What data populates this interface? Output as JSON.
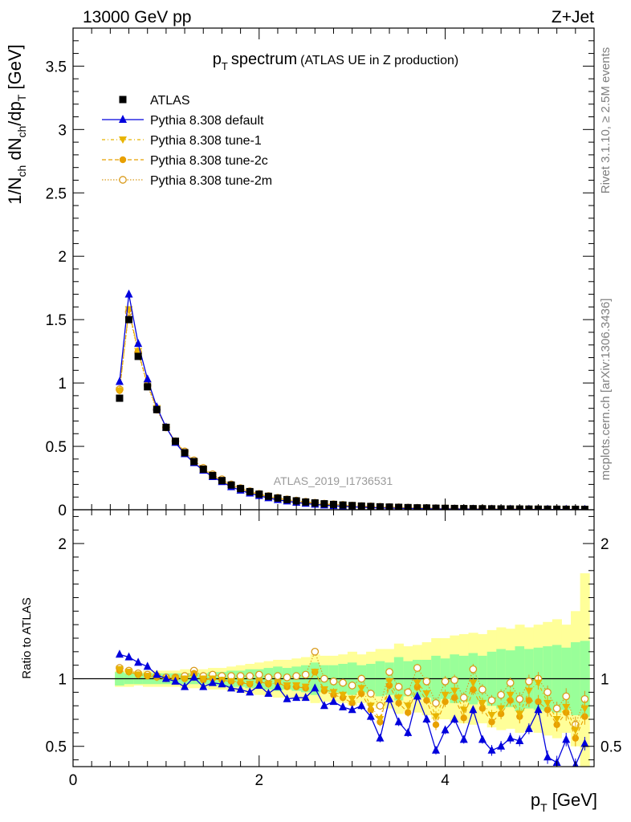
{
  "header": {
    "energy_label": "13000 GeV pp",
    "process_label": "Z+Jet"
  },
  "side_labels": {
    "rivet": "Rivet 3.1.10, ≥ 2.5M events",
    "mcplots": "mcplots.cern.ch [arXiv:1306.3436]"
  },
  "watermark": "ATLAS_2019_I1736531",
  "colors": {
    "data": "#000000",
    "default": "#0000dd",
    "tune1": "#e8b400",
    "tune2c": "#e8a000",
    "tune2m": "#d99a1a",
    "band_inner": "#99ff99",
    "band_outer": "#ffff99"
  },
  "chart_data": [
    {
      "type": "line",
      "title": "p_T spectrum",
      "title_main": "p",
      "title_sub": "T",
      "title_word": "spectrum",
      "subtitle": "(ATLAS UE in Z production)",
      "ylabel": "1/N_ch dN_ch/dp_T [GeV]",
      "ylabel_parts": {
        "a": "1/N",
        "a_sub": "ch",
        "b": " dN",
        "b_sub": "ch",
        "c": "/dp",
        "c_sub": "T",
        "d": " [GeV]"
      },
      "xlim": [
        0,
        5.6
      ],
      "ylim": [
        0,
        3.8
      ],
      "yticks": [
        "0",
        "0.5",
        "1",
        "1.5",
        "2",
        "2.5",
        "3",
        "3.5"
      ],
      "x": [
        0.5,
        0.6,
        0.7,
        0.8,
        0.9,
        1.0,
        1.1,
        1.2,
        1.3,
        1.4,
        1.5,
        1.6,
        1.7,
        1.8,
        1.9,
        2.0,
        2.1,
        2.2,
        2.3,
        2.4,
        2.5,
        2.6,
        2.7,
        2.8,
        2.9,
        3.0,
        3.1,
        3.2,
        3.3,
        3.4,
        3.5,
        3.6,
        3.7,
        3.8,
        3.9,
        4.0,
        4.1,
        4.2,
        4.3,
        4.4,
        4.5,
        4.6,
        4.7,
        4.8,
        4.9,
        5.0,
        5.1,
        5.2,
        5.3,
        5.4,
        5.5
      ],
      "legend": [
        {
          "label": "ATLAS",
          "marker": "square"
        },
        {
          "label": "Pythia 8.308 default",
          "marker": "triangle-up"
        },
        {
          "label": "Pythia 8.308 tune-1",
          "marker": "triangle-down"
        },
        {
          "label": "Pythia 8.308 tune-2c",
          "marker": "circle"
        },
        {
          "label": "Pythia 8.308 tune-2m",
          "marker": "open-circle"
        }
      ],
      "series": [
        {
          "name": "ATLAS",
          "values": [
            0.88,
            1.5,
            1.21,
            0.97,
            0.79,
            0.65,
            0.54,
            0.45,
            0.38,
            0.32,
            0.27,
            0.23,
            0.195,
            0.167,
            0.143,
            0.123,
            0.106,
            0.092,
            0.08,
            0.07,
            0.061,
            0.054,
            0.047,
            0.042,
            0.037,
            0.033,
            0.029,
            0.026,
            0.023,
            0.021,
            0.019,
            0.017,
            0.015,
            0.014,
            0.012,
            0.011,
            0.01,
            0.009,
            0.0085,
            0.0078,
            0.0071,
            0.0065,
            0.006,
            0.0055,
            0.005,
            0.0046,
            0.0042,
            0.0039,
            0.0036,
            0.0033,
            0.003
          ]
        },
        {
          "name": "Pythia 8.308 default",
          "values": [
            1.01,
            1.7,
            1.31,
            1.03,
            0.81,
            0.65,
            0.53,
            0.44,
            0.37,
            0.31,
            0.26,
            0.22,
            0.18,
            0.153,
            0.13,
            0.11,
            0.093,
            0.078,
            0.067,
            0.057,
            0.049,
            0.042,
            0.036,
            0.031,
            0.027,
            0.023,
            0.02,
            0.017,
            0.014,
            0.013,
            0.011,
            0.01,
            0.009,
            0.008,
            0.006,
            0.006,
            0.005,
            0.005,
            0.004,
            0.004,
            0.003,
            0.003,
            0.003,
            0.003,
            0.002,
            0.002,
            0.002,
            0.002,
            0.002,
            0.0015,
            0.0015
          ]
        },
        {
          "name": "Pythia 8.308 tune-1",
          "values": [
            0.94,
            1.58,
            1.25,
            0.99,
            0.8,
            0.65,
            0.54,
            0.45,
            0.38,
            0.32,
            0.27,
            0.23,
            0.19,
            0.165,
            0.14,
            0.12,
            0.103,
            0.089,
            0.077,
            0.067,
            0.058,
            0.051,
            0.044,
            0.039,
            0.034,
            0.03,
            0.026,
            0.023,
            0.02,
            0.018,
            0.016,
            0.014,
            0.013,
            0.012,
            0.01,
            0.009,
            0.008,
            0.007,
            0.007,
            0.006,
            0.006,
            0.005,
            0.005,
            0.004,
            0.004,
            0.004,
            0.003,
            0.003,
            0.003,
            0.003,
            0.002
          ]
        },
        {
          "name": "Pythia 8.308 tune-2c",
          "values": [
            0.94,
            1.58,
            1.25,
            0.99,
            0.8,
            0.65,
            0.54,
            0.45,
            0.38,
            0.32,
            0.27,
            0.23,
            0.19,
            0.165,
            0.14,
            0.12,
            0.103,
            0.089,
            0.077,
            0.067,
            0.058,
            0.051,
            0.044,
            0.039,
            0.034,
            0.03,
            0.026,
            0.023,
            0.02,
            0.018,
            0.016,
            0.014,
            0.013,
            0.012,
            0.01,
            0.009,
            0.008,
            0.007,
            0.007,
            0.006,
            0.006,
            0.005,
            0.005,
            0.004,
            0.004,
            0.004,
            0.003,
            0.003,
            0.003,
            0.003,
            0.002
          ]
        },
        {
          "name": "Pythia 8.308 tune-2m",
          "values": [
            0.95,
            1.56,
            1.24,
            0.98,
            0.79,
            0.65,
            0.54,
            0.46,
            0.39,
            0.33,
            0.28,
            0.24,
            0.2,
            0.17,
            0.146,
            0.125,
            0.108,
            0.094,
            0.082,
            0.072,
            0.063,
            0.055,
            0.048,
            0.043,
            0.038,
            0.033,
            0.029,
            0.026,
            0.023,
            0.021,
            0.019,
            0.017,
            0.015,
            0.014,
            0.012,
            0.011,
            0.01,
            0.009,
            0.008,
            0.008,
            0.007,
            0.006,
            0.006,
            0.005,
            0.005,
            0.005,
            0.004,
            0.004,
            0.004,
            0.003,
            0.003
          ]
        }
      ]
    },
    {
      "type": "line",
      "ylabel": "Ratio to ATLAS",
      "xlabel": "p_T [GeV]",
      "xlabel_main": "p",
      "xlabel_sub": "T",
      "xlabel_unit": " [GeV]",
      "xlim": [
        0,
        5.6
      ],
      "ylim": [
        0.35,
        2.25
      ],
      "xticks": [
        "0",
        "2",
        "4"
      ],
      "yticks": [
        "0.5",
        "1",
        "2"
      ],
      "x": [
        0.5,
        0.6,
        0.7,
        0.8,
        0.9,
        1.0,
        1.1,
        1.2,
        1.3,
        1.4,
        1.5,
        1.6,
        1.7,
        1.8,
        1.9,
        2.0,
        2.1,
        2.2,
        2.3,
        2.4,
        2.5,
        2.6,
        2.7,
        2.8,
        2.9,
        3.0,
        3.1,
        3.2,
        3.3,
        3.4,
        3.5,
        3.6,
        3.7,
        3.8,
        3.9,
        4.0,
        4.1,
        4.2,
        4.3,
        4.4,
        4.5,
        4.6,
        4.7,
        4.8,
        4.9,
        5.0,
        5.1,
        5.2,
        5.3,
        5.4,
        5.5
      ],
      "band_inner": [
        0.05,
        0.04,
        0.04,
        0.04,
        0.04,
        0.04,
        0.04,
        0.04,
        0.04,
        0.04,
        0.05,
        0.05,
        0.06,
        0.06,
        0.07,
        0.07,
        0.08,
        0.09,
        0.08,
        0.09,
        0.1,
        0.12,
        0.1,
        0.1,
        0.11,
        0.12,
        0.1,
        0.11,
        0.13,
        0.12,
        0.16,
        0.13,
        0.14,
        0.14,
        0.17,
        0.15,
        0.18,
        0.17,
        0.19,
        0.17,
        0.2,
        0.22,
        0.21,
        0.24,
        0.22,
        0.23,
        0.24,
        0.25,
        0.23,
        0.27,
        0.28
      ],
      "band_outer": [
        0.06,
        0.06,
        0.05,
        0.06,
        0.06,
        0.06,
        0.06,
        0.07,
        0.07,
        0.07,
        0.08,
        0.08,
        0.09,
        0.1,
        0.11,
        0.12,
        0.13,
        0.14,
        0.14,
        0.15,
        0.16,
        0.18,
        0.17,
        0.17,
        0.18,
        0.2,
        0.18,
        0.2,
        0.22,
        0.22,
        0.26,
        0.24,
        0.25,
        0.27,
        0.3,
        0.3,
        0.32,
        0.33,
        0.34,
        0.33,
        0.36,
        0.38,
        0.37,
        0.4,
        0.38,
        0.4,
        0.42,
        0.44,
        0.4,
        0.5,
        0.78
      ],
      "series": [
        {
          "name": "Pythia 8.308 default",
          "values": [
            1.18,
            1.16,
            1.12,
            1.09,
            1.03,
            1.0,
            0.98,
            0.94,
            1.01,
            0.94,
            0.97,
            0.96,
            0.93,
            0.92,
            0.9,
            0.95,
            0.89,
            0.94,
            0.85,
            0.86,
            0.86,
            0.93,
            0.8,
            0.83,
            0.79,
            0.77,
            0.8,
            0.72,
            0.56,
            0.85,
            0.68,
            0.6,
            0.87,
            0.7,
            0.47,
            0.62,
            0.7,
            0.55,
            0.77,
            0.55,
            0.47,
            0.5,
            0.56,
            0.54,
            0.63,
            0.77,
            0.42,
            0.38,
            0.55,
            0.36,
            0.52
          ],
          "errors": [
            0.02,
            0.02,
            0.02,
            0.02,
            0.02,
            0.02,
            0.02,
            0.02,
            0.02,
            0.02,
            0.02,
            0.02,
            0.02,
            0.02,
            0.02,
            0.02,
            0.02,
            0.02,
            0.02,
            0.02,
            0.02,
            0.02,
            0.02,
            0.02,
            0.02,
            0.02,
            0.03,
            0.03,
            0.03,
            0.03,
            0.03,
            0.03,
            0.03,
            0.03,
            0.03,
            0.03,
            0.03,
            0.03,
            0.03,
            0.03,
            0.04,
            0.04,
            0.04,
            0.04,
            0.04,
            0.04,
            0.05,
            0.05,
            0.05,
            0.05,
            0.05
          ]
        },
        {
          "name": "Pythia 8.308 tune-1",
          "values": [
            1.07,
            1.05,
            1.03,
            1.02,
            1.01,
            1.0,
            1.0,
            1.0,
            1.01,
            1.0,
            1.0,
            0.99,
            0.98,
            0.98,
            0.96,
            0.98,
            0.96,
            0.97,
            0.95,
            0.95,
            0.94,
            1.05,
            0.92,
            0.9,
            0.88,
            0.85,
            0.93,
            0.8,
            0.7,
            0.98,
            0.86,
            0.8,
            0.97,
            0.89,
            0.72,
            0.88,
            0.91,
            0.77,
            0.97,
            0.82,
            0.73,
            0.78,
            0.88,
            0.74,
            0.91,
            0.97,
            0.82,
            0.7,
            0.79,
            0.62,
            0.78
          ],
          "errors": [
            0.02,
            0.02,
            0.02,
            0.02,
            0.02,
            0.02,
            0.02,
            0.02,
            0.02,
            0.02,
            0.02,
            0.02,
            0.02,
            0.02,
            0.02,
            0.02,
            0.02,
            0.02,
            0.02,
            0.02,
            0.02,
            0.02,
            0.02,
            0.03,
            0.03,
            0.03,
            0.03,
            0.03,
            0.03,
            0.03,
            0.03,
            0.03,
            0.03,
            0.03,
            0.04,
            0.04,
            0.04,
            0.04,
            0.04,
            0.04,
            0.04,
            0.04,
            0.04,
            0.05,
            0.05,
            0.05,
            0.05,
            0.05,
            0.06,
            0.06,
            0.06
          ]
        },
        {
          "name": "Pythia 8.308 tune-2c",
          "values": [
            1.06,
            1.05,
            1.03,
            1.02,
            1.01,
            1.0,
            1.01,
            1.0,
            1.04,
            0.99,
            1.0,
            0.99,
            0.98,
            0.97,
            0.96,
            0.98,
            0.96,
            0.97,
            0.94,
            0.94,
            0.93,
            1.05,
            0.91,
            0.88,
            0.86,
            0.82,
            0.89,
            0.77,
            0.68,
            0.95,
            0.82,
            0.75,
            0.94,
            0.84,
            0.66,
            0.83,
            0.86,
            0.71,
            0.92,
            0.78,
            0.68,
            0.74,
            0.84,
            0.72,
            0.84,
            0.83,
            0.77,
            0.66,
            0.75,
            0.56,
            0.72
          ],
          "errors": [
            0.02,
            0.02,
            0.02,
            0.02,
            0.02,
            0.02,
            0.02,
            0.02,
            0.02,
            0.02,
            0.02,
            0.02,
            0.02,
            0.02,
            0.02,
            0.02,
            0.02,
            0.02,
            0.02,
            0.02,
            0.02,
            0.02,
            0.02,
            0.03,
            0.03,
            0.03,
            0.03,
            0.03,
            0.03,
            0.03,
            0.03,
            0.03,
            0.03,
            0.03,
            0.04,
            0.04,
            0.04,
            0.04,
            0.04,
            0.04,
            0.04,
            0.04,
            0.04,
            0.05,
            0.05,
            0.05,
            0.05,
            0.05,
            0.06,
            0.06,
            0.06
          ]
        },
        {
          "name": "Pythia 8.308 tune-2m",
          "values": [
            1.08,
            1.06,
            1.04,
            1.03,
            1.02,
            1.01,
            1.01,
            1.02,
            1.06,
            1.02,
            1.03,
            1.02,
            1.02,
            1.02,
            1.02,
            1.03,
            1.01,
            1.02,
            1.01,
            1.02,
            1.03,
            1.2,
            1.0,
            0.98,
            0.97,
            0.95,
            1.0,
            0.89,
            0.8,
            1.05,
            0.94,
            0.9,
            1.08,
            0.98,
            0.82,
            0.98,
            0.99,
            0.86,
            1.07,
            0.92,
            0.84,
            0.88,
            0.97,
            0.85,
            0.98,
            1.0,
            0.9,
            0.78,
            0.87,
            0.66,
            0.85
          ],
          "errors": [
            0.02,
            0.02,
            0.02,
            0.02,
            0.02,
            0.02,
            0.02,
            0.02,
            0.02,
            0.02,
            0.02,
            0.02,
            0.02,
            0.02,
            0.02,
            0.02,
            0.02,
            0.02,
            0.02,
            0.02,
            0.02,
            0.02,
            0.02,
            0.03,
            0.03,
            0.03,
            0.03,
            0.03,
            0.03,
            0.03,
            0.03,
            0.03,
            0.03,
            0.03,
            0.04,
            0.04,
            0.04,
            0.04,
            0.04,
            0.04,
            0.04,
            0.04,
            0.04,
            0.05,
            0.05,
            0.05,
            0.05,
            0.05,
            0.06,
            0.06,
            0.06
          ]
        }
      ]
    }
  ]
}
